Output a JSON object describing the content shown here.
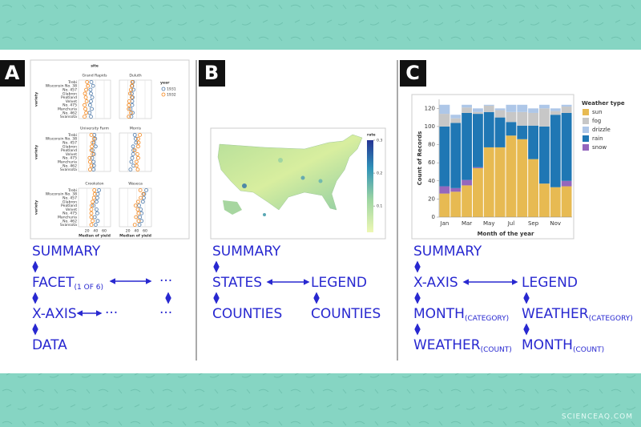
{
  "panel_a": {
    "badge": "A",
    "summary": "SUMMARY",
    "facet": {
      "text": "FACET",
      "sub": "(1 OF 6)"
    },
    "x_axis": "X-AXIS",
    "data": "DATA",
    "ellipsis": "···"
  },
  "panel_b": {
    "badge": "B",
    "summary": "SUMMARY",
    "states": "STATES",
    "legend": "LEGEND",
    "counties": "COUNTIES"
  },
  "panel_c": {
    "badge": "C",
    "summary": "SUMMARY",
    "x_axis": "X-AXIS",
    "legend": "LEGEND",
    "month_category": {
      "text": "MONTH",
      "sub": "(CATEGORY)"
    },
    "weather_category": {
      "text": "WEATHER",
      "sub": "(CATEGORY)"
    },
    "weather_count": {
      "text": "WEATHER",
      "sub": "(COUNT)"
    },
    "month_count": {
      "text": "MONTH",
      "sub": "(COUNT)"
    }
  },
  "watermark": "SCIENCEAQ.COM",
  "chart_a": {
    "type": "dot",
    "header": "site",
    "y_label": "variety",
    "x_label": "Median of yield",
    "varieties": [
      "Trebi",
      "Wisconsin No. 38",
      "No. 457",
      "Glabron",
      "Peatland",
      "Velvet",
      "No. 475",
      "Manchuria",
      "No. 462",
      "Svansota"
    ],
    "xlim": [
      0,
      75
    ],
    "xticks": [
      20,
      40,
      60
    ],
    "legend_title": "year",
    "series": [
      {
        "name": "1931",
        "color": "#4c78a8"
      },
      {
        "name": "1932",
        "color": "#f58518"
      }
    ],
    "facets": [
      {
        "title": "Grand Rapids",
        "values": [
          [
            30,
            34,
            28,
            29,
            32,
            29,
            27,
            31,
            26,
            29
          ],
          [
            20,
            22,
            18,
            15,
            17,
            19,
            14,
            16,
            18,
            14
          ]
        ]
      },
      {
        "title": "Duluth",
        "values": [
          [
            32,
            30,
            33,
            29,
            31,
            30,
            30,
            26,
            31,
            28
          ],
          [
            30,
            29,
            27,
            25,
            29,
            23,
            22,
            22,
            27,
            22
          ]
        ]
      },
      {
        "title": "University Farm",
        "values": [
          [
            37,
            39,
            36,
            40,
            33,
            36,
            32,
            35,
            36,
            35
          ],
          [
            30,
            36,
            33,
            31,
            30,
            33,
            26,
            27,
            30,
            27
          ]
        ]
      },
      {
        "title": "Morris",
        "values": [
          [
            36,
            38,
            39,
            32,
            33,
            32,
            30,
            28,
            33,
            26
          ],
          [
            48,
            44,
            45,
            44,
            36,
            42,
            44,
            40,
            40,
            43
          ]
        ]
      },
      {
        "title": "Crookston",
        "values": [
          [
            48,
            45,
            44,
            42,
            35,
            42,
            44,
            38,
            45,
            40
          ],
          [
            37,
            38,
            36,
            33,
            31,
            30,
            30,
            30,
            33,
            30
          ]
        ]
      },
      {
        "title": "Waseca",
        "values": [
          [
            63,
            58,
            57,
            55,
            46,
            50,
            52,
            48,
            52,
            47
          ],
          [
            49,
            56,
            50,
            44,
            38,
            43,
            45,
            39,
            45,
            36
          ]
        ]
      }
    ]
  },
  "map_b": {
    "legend_title": "rate",
    "lim": [
      0.02,
      0.3
    ],
    "ticks": [
      0.1,
      0.2,
      0.3
    ]
  },
  "chart_c": {
    "type": "stacked-bar",
    "x_label": "Month of the year",
    "y_label": "Count of Records",
    "legend_title": "Weather type",
    "categories": [
      "Jan",
      null,
      "Mar",
      null,
      "May",
      null,
      "Jul",
      null,
      "Sep",
      null,
      "Nov",
      null
    ],
    "ylim": [
      0,
      130
    ],
    "yticks": [
      0,
      20,
      40,
      60,
      80,
      100,
      120
    ],
    "series": [
      {
        "name": "sun",
        "color": "#e7ba52",
        "values": [
          26,
          28,
          35,
          54,
          77,
          77,
          90,
          86,
          64,
          37,
          33,
          34
        ]
      },
      {
        "name": "fog",
        "color": "#c7c7c7",
        "values": [
          14,
          5,
          6,
          2,
          7,
          8,
          11,
          15,
          14,
          20,
          4,
          7
        ]
      },
      {
        "name": "drizzle",
        "color": "#aec7e8",
        "values": [
          10,
          4,
          3,
          4,
          1,
          2,
          8,
          8,
          5,
          4,
          3,
          2
        ]
      },
      {
        "name": "rain",
        "color": "#1f77b4",
        "values": [
          66,
          72,
          74,
          59,
          39,
          33,
          15,
          15,
          37,
          63,
          80,
          75
        ]
      },
      {
        "name": "snow",
        "color": "#9467bd",
        "values": [
          8,
          4,
          6,
          1,
          0,
          0,
          0,
          0,
          0,
          0,
          0,
          6
        ]
      }
    ]
  }
}
